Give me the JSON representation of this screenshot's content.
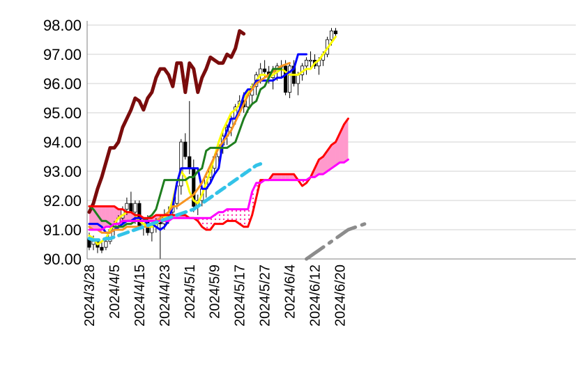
{
  "chart_data": {
    "type": "line",
    "title": "",
    "xlabel": "",
    "ylabel": "",
    "ylim": [
      90,
      98
    ],
    "ytick_labels": [
      "90.00",
      "91.00",
      "92.00",
      "93.00",
      "94.00",
      "95.00",
      "96.00",
      "97.00",
      "98.00"
    ],
    "yticks": [
      90,
      91,
      92,
      93,
      94,
      95,
      96,
      97,
      98
    ],
    "x_labels": [
      "2024/3/28",
      "2024/4/5",
      "2024/4/15",
      "2024/4/23",
      "2024/5/1",
      "2024/5/9",
      "2024/5/17",
      "2024/5/27",
      "2024/6/4",
      "2024/6/12",
      "2024/6/20"
    ],
    "grid": "horizontal",
    "legend": "none",
    "n_slots": 117,
    "label_slots": [
      0,
      6,
      12,
      18,
      24,
      30,
      36,
      42,
      48,
      54,
      60
    ],
    "candles_start_slot": 0,
    "candles": [
      [
        90.7,
        90.9,
        90.3,
        90.4
      ],
      [
        90.5,
        90.8,
        90.3,
        90.6
      ],
      [
        90.6,
        90.7,
        90.2,
        90.4
      ],
      [
        90.4,
        90.6,
        90.2,
        90.3
      ],
      [
        90.4,
        90.7,
        90.3,
        90.6
      ],
      [
        90.6,
        91.1,
        90.5,
        91.0
      ],
      [
        91.0,
        91.3,
        90.8,
        91.2
      ],
      [
        91.2,
        91.5,
        91.0,
        91.4
      ],
      [
        91.4,
        91.8,
        91.2,
        91.7
      ],
      [
        91.7,
        92.1,
        91.5,
        91.9
      ],
      [
        91.9,
        92.3,
        91.6,
        91.6
      ],
      [
        91.6,
        92.0,
        91.2,
        91.9
      ],
      [
        91.9,
        92.0,
        91.0,
        91.1
      ],
      [
        91.1,
        91.4,
        90.8,
        91.3
      ],
      [
        91.3,
        91.5,
        90.8,
        90.9
      ],
      [
        90.9,
        91.2,
        90.6,
        91.1
      ],
      [
        91.1,
        91.4,
        90.9,
        91.3
      ],
      [
        91.3,
        91.5,
        90.0,
        91.2
      ],
      [
        91.2,
        91.7,
        91.0,
        91.5
      ],
      [
        91.5,
        91.8,
        91.2,
        91.6
      ],
      [
        91.6,
        92.0,
        91.4,
        91.9
      ],
      [
        91.9,
        92.6,
        91.7,
        92.5
      ],
      [
        92.5,
        94.1,
        92.2,
        94.0
      ],
      [
        94.0,
        94.3,
        93.4,
        93.5
      ],
      [
        93.5,
        95.4,
        92.9,
        93.1
      ],
      [
        93.1,
        93.4,
        91.6,
        91.8
      ],
      [
        91.8,
        92.2,
        91.5,
        92.0
      ],
      [
        92.0,
        92.5,
        91.8,
        92.4
      ],
      [
        92.4,
        92.9,
        92.1,
        92.8
      ],
      [
        92.8,
        93.2,
        92.6,
        93.1
      ],
      [
        93.1,
        93.6,
        92.9,
        93.5
      ],
      [
        93.5,
        94.0,
        93.2,
        93.9
      ],
      [
        93.9,
        94.4,
        93.6,
        94.2
      ],
      [
        94.2,
        94.6,
        93.9,
        94.5
      ],
      [
        94.5,
        94.9,
        94.2,
        94.8
      ],
      [
        94.8,
        95.3,
        94.6,
        95.2
      ],
      [
        95.2,
        95.6,
        94.9,
        95.4
      ],
      [
        95.4,
        95.7,
        95.0,
        95.2
      ],
      [
        95.2,
        95.7,
        95.0,
        95.6
      ],
      [
        95.6,
        96.0,
        95.3,
        95.9
      ],
      [
        95.9,
        96.4,
        95.6,
        96.3
      ],
      [
        96.3,
        96.7,
        96.0,
        96.5
      ],
      [
        96.5,
        96.8,
        96.2,
        96.4
      ],
      [
        96.4,
        96.6,
        96.0,
        96.2
      ],
      [
        96.2,
        96.6,
        95.8,
        96.4
      ],
      [
        96.4,
        96.7,
        96.1,
        96.6
      ],
      [
        96.6,
        96.8,
        96.2,
        96.6
      ],
      [
        96.6,
        96.8,
        95.6,
        95.7
      ],
      [
        95.7,
        96.7,
        95.5,
        96.6
      ],
      [
        96.6,
        96.8,
        95.9,
        96.0
      ],
      [
        96.0,
        96.4,
        95.6,
        96.3
      ],
      [
        96.3,
        96.7,
        96.1,
        96.6
      ],
      [
        96.6,
        96.9,
        96.3,
        96.8
      ],
      [
        96.8,
        97.1,
        96.5,
        96.8
      ],
      [
        96.8,
        97.0,
        96.5,
        96.6
      ],
      [
        96.6,
        96.9,
        96.3,
        96.8
      ],
      [
        96.8,
        97.1,
        96.6,
        97.0
      ],
      [
        97.0,
        97.6,
        96.9,
        97.5
      ],
      [
        97.5,
        97.9,
        97.3,
        97.8
      ],
      [
        97.8,
        97.9,
        97.6,
        97.7
      ]
    ],
    "series": [
      {
        "color": "#7a0c0c",
        "width": 5,
        "dash": "",
        "start_slot": 0,
        "values": [
          91.6,
          91.9,
          92.4,
          92.8,
          93.3,
          93.8,
          93.8,
          94.0,
          94.5,
          94.8,
          95.1,
          95.5,
          95.4,
          95.1,
          95.5,
          95.7,
          96.2,
          96.5,
          96.5,
          96.3,
          95.9,
          96.7,
          96.7,
          95.7,
          96.7,
          96.5,
          95.7,
          96.2,
          96.5,
          96.9,
          96.8,
          96.7,
          96.7,
          97.0,
          96.9,
          97.2,
          97.8,
          97.7
        ]
      },
      {
        "color": "#ffff00",
        "width": 3,
        "dash": "",
        "start_slot": 0,
        "values": [
          90.8,
          90.7,
          90.5,
          90.6,
          90.7,
          91.0,
          91.2,
          91.4,
          91.5,
          91.6,
          91.6,
          91.5,
          91.3,
          91.2,
          91.1,
          91.1,
          91.2,
          91.3,
          91.4,
          91.6,
          92.0,
          92.6,
          93.0,
          92.8,
          92.3,
          92.0,
          91.9,
          92.2,
          92.6,
          93.0,
          93.5,
          94.0,
          94.4,
          94.7,
          95.0,
          95.1,
          95.3,
          95.5,
          95.7,
          95.9,
          96.1,
          96.3,
          96.3,
          96.2,
          96.3,
          96.4,
          96.5,
          96.4,
          96.3,
          96.3,
          96.3,
          96.4,
          96.5,
          96.5,
          96.7,
          96.8,
          97.0,
          97.2,
          97.4,
          97.6
        ]
      },
      {
        "color": "#0000ff",
        "width": 3,
        "dash": "",
        "start_slot": 0,
        "values": [
          91.2,
          91.2,
          91.2,
          91.1,
          90.9,
          90.9,
          91.0,
          91.1,
          91.2,
          91.3,
          91.3,
          91.4,
          91.4,
          91.4,
          91.2,
          91.2,
          91.1,
          91.0,
          91.1,
          91.3,
          91.8,
          92.6,
          93.1,
          93.1,
          93.1,
          93.1,
          93.1,
          92.4,
          92.4,
          92.6,
          92.9,
          93.1,
          94.0,
          94.4,
          94.8,
          94.8,
          95.1,
          95.6,
          95.8,
          95.8,
          96.1,
          96.1,
          96.1,
          96.1,
          96.1,
          96.2,
          96.2,
          96.3,
          96.4,
          96.5,
          97.0,
          97.0,
          97.0
        ]
      },
      {
        "color": "#f79420",
        "width": 3,
        "dash": "",
        "start_slot": 0,
        "values": [
          91.1,
          91.0,
          91.0,
          90.9,
          90.9,
          90.9,
          91.0,
          91.0,
          91.0,
          91.1,
          91.1,
          91.1,
          91.1,
          91.1,
          91.1,
          91.2,
          91.3,
          91.4,
          91.5,
          91.6,
          91.8,
          91.8,
          91.9,
          92.0,
          92.1,
          92.2,
          92.4,
          92.6,
          92.9,
          93.2,
          93.5,
          93.8,
          94.0,
          94.2,
          94.4,
          94.7,
          95.0,
          95.3,
          95.6,
          95.8,
          96.0,
          96.1,
          96.2,
          96.3,
          96.4,
          96.5,
          96.6,
          96.65,
          96.7
        ]
      },
      {
        "color": "#1e7e1e",
        "width": 3,
        "dash": "",
        "start_slot": 0,
        "values": [
          91.8,
          91.7,
          91.5,
          91.3,
          91.3,
          91.2,
          91.1,
          91.1,
          91.1,
          91.2,
          91.2,
          91.3,
          91.3,
          91.3,
          91.4,
          91.5,
          91.7,
          92.2,
          92.7,
          92.7,
          92.7,
          92.7,
          92.7,
          92.7,
          92.8,
          92.8,
          93.0,
          93.1,
          93.7,
          93.8,
          93.8,
          93.8,
          93.8,
          93.8,
          93.9,
          94.0,
          94.4,
          94.8,
          95.1,
          95.3,
          95.4,
          95.8,
          95.9,
          96.2,
          96.5,
          96.5,
          96.5
        ]
      },
      {
        "color": "#ff0000",
        "width": 3,
        "dash": "",
        "start_slot": 0,
        "values": [
          91.8,
          91.8,
          91.8,
          91.8,
          91.8,
          91.8,
          91.8,
          91.7,
          91.7,
          91.6,
          91.6,
          91.5,
          91.5,
          91.4,
          91.4,
          91.4,
          91.5,
          91.5,
          91.5,
          91.5,
          91.5,
          91.5,
          91.5,
          91.5,
          91.4,
          91.4,
          91.3,
          91.1,
          91.0,
          91.0,
          91.2,
          91.2,
          91.2,
          91.3,
          91.3,
          91.3,
          91.2,
          91.1,
          91.1,
          91.5,
          92.1,
          92.7,
          92.7,
          92.7,
          92.9,
          92.9,
          92.9,
          92.9,
          92.9,
          92.9,
          92.7,
          92.5,
          92.6,
          92.8,
          93.1,
          93.4,
          93.5,
          93.7,
          93.9,
          94.0,
          94.3,
          94.6,
          94.8
        ]
      },
      {
        "color": "#ff00ff",
        "width": 3,
        "dash": "",
        "start_slot": 0,
        "values": [
          91.0,
          91.0,
          91.0,
          91.0,
          91.1,
          91.1,
          91.2,
          91.2,
          91.3,
          91.3,
          91.3,
          91.3,
          91.3,
          91.3,
          91.3,
          91.3,
          91.3,
          91.3,
          91.3,
          91.3,
          91.4,
          91.4,
          91.4,
          91.4,
          91.4,
          91.4,
          91.4,
          91.4,
          91.4,
          91.4,
          91.5,
          91.6,
          91.6,
          91.7,
          91.7,
          91.7,
          91.7,
          91.7,
          91.7,
          92.3,
          92.6,
          92.6,
          92.7,
          92.7,
          92.7,
          92.7,
          92.7,
          92.7,
          92.7,
          92.7,
          92.7,
          92.7,
          92.7,
          92.8,
          92.8,
          92.9,
          92.9,
          93.0,
          93.1,
          93.2,
          93.3,
          93.3,
          93.4
        ]
      },
      {
        "color": "#33c3e8",
        "width": 5,
        "dash": "14,8",
        "start_slot": 0,
        "values": [
          90.7,
          90.65,
          90.65,
          90.65,
          90.7,
          90.7,
          90.75,
          90.8,
          90.85,
          90.9,
          90.95,
          91.0,
          91.05,
          91.1,
          91.15,
          91.2,
          91.25,
          91.3,
          91.35,
          91.4,
          91.45,
          91.5,
          91.55,
          91.6,
          91.65,
          91.7,
          91.8,
          91.9,
          92.0,
          92.1,
          92.2,
          92.3,
          92.4,
          92.5,
          92.6,
          92.7,
          92.8,
          92.9,
          93.0,
          93.1,
          93.2,
          93.25
        ]
      },
      {
        "color": "#8c8c8c",
        "width": 5,
        "dash": "30,10,4,10",
        "start_slot": 52,
        "values": [
          90.0,
          90.1,
          90.2,
          90.3,
          90.4,
          90.5,
          90.6,
          90.7,
          90.8,
          90.9,
          91.0,
          91.05,
          91.1,
          91.15,
          91.2,
          91.25
        ]
      }
    ],
    "cloud": {
      "upper_index": 5,
      "lower_index": 6,
      "upper_color": "#ff99cc",
      "lower_color": "#ffffff"
    }
  }
}
